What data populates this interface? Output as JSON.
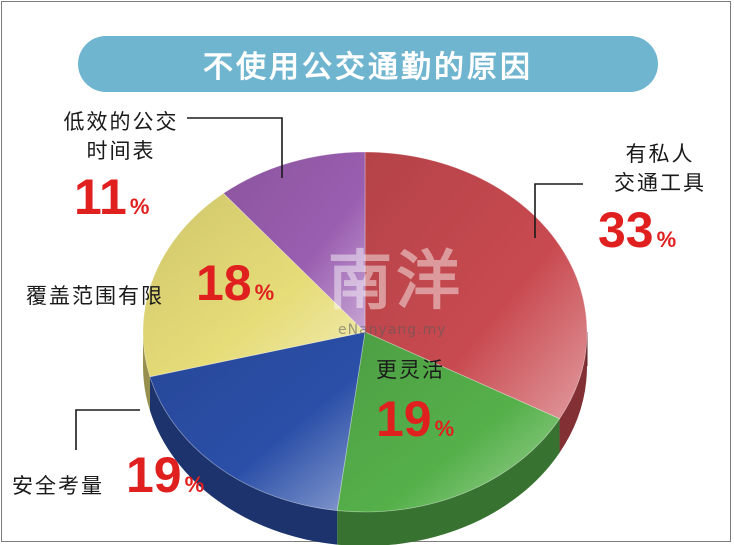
{
  "title": "不使用公交通勤的原因",
  "chart_data": {
    "type": "pie",
    "title": "不使用公交通勤的原因",
    "unit": "%",
    "slices": [
      {
        "label": "有私人交通工具",
        "label_lines": [
          "有私人",
          "交通工具"
        ],
        "value": 33,
        "color": "#c84a50"
      },
      {
        "label": "更灵活",
        "label_lines": [
          "更灵活"
        ],
        "value": 19,
        "color": "#55b04a"
      },
      {
        "label": "安全考量",
        "label_lines": [
          "安全考量"
        ],
        "value": 19,
        "color": "#2b4fa8"
      },
      {
        "label": "覆盖范围有限",
        "label_lines": [
          "覆盖范围有限"
        ],
        "value": 18,
        "color": "#e6dc78"
      },
      {
        "label": "低效的公交时间表",
        "label_lines": [
          "低效的公交",
          "时间表"
        ],
        "value": 11,
        "color": "#9a5eb0"
      }
    ],
    "legend": "none"
  },
  "watermark": {
    "main": "南洋",
    "sub": "eNanyang.my"
  }
}
